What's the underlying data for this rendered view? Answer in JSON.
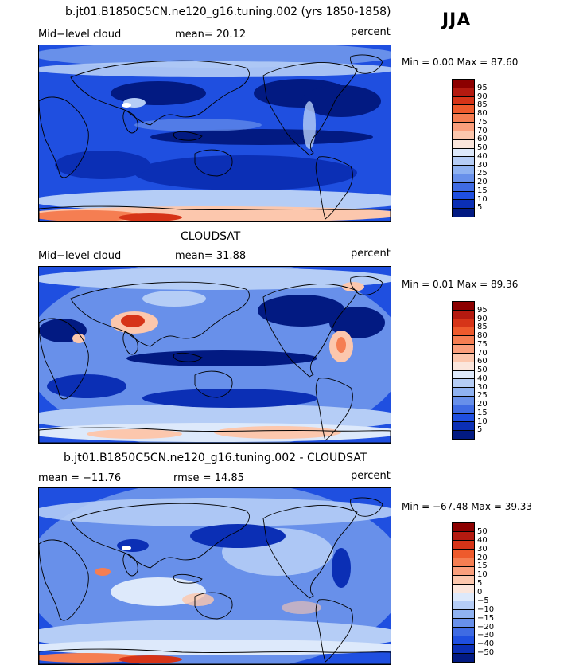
{
  "season": "JJA",
  "panels": [
    {
      "title": "b.jt01.B1850C5CN.ne120_g16.tuning.002 (yrs 1850-1858)",
      "left_label": "Mid−level cloud",
      "mid_label": "mean=  20.12",
      "right_label": "percent",
      "minmax": "Min =   0.00 Max =  87.60",
      "colorbar_labels": [
        "95",
        "90",
        "85",
        "80",
        "75",
        "70",
        "60",
        "50",
        "40",
        "30",
        "25",
        "20",
        "15",
        "10",
        "5"
      ]
    },
    {
      "title": "CLOUDSAT",
      "left_label": "Mid−level cloud",
      "mid_label": "mean=  31.88",
      "right_label": "percent",
      "minmax": "Min =   0.01 Max =  89.36",
      "colorbar_labels": [
        "95",
        "90",
        "85",
        "80",
        "75",
        "70",
        "60",
        "50",
        "40",
        "30",
        "25",
        "20",
        "15",
        "10",
        "5"
      ]
    },
    {
      "title": "b.jt01.B1850C5CN.ne120_g16.tuning.002 - CLOUDSAT",
      "left_label": "mean = −11.76",
      "mid_label": "rmse =  14.85",
      "right_label": "percent",
      "minmax": "Min = −67.48 Max =  39.33",
      "colorbar_labels": [
        "50",
        "40",
        "30",
        "20",
        "15",
        "10",
        "5",
        "0",
        "−5",
        "−10",
        "−15",
        "−20",
        "−30",
        "−40",
        "−50"
      ]
    }
  ],
  "colorbar_colors": [
    "#8c0000",
    "#b41a10",
    "#d63418",
    "#ee5a2c",
    "#f57e52",
    "#fa9f7c",
    "#fcc7ad",
    "#fbe6dc",
    "#dde9fb",
    "#b5cdf6",
    "#8fb2f1",
    "#6890ea",
    "#3f6be3",
    "#1f4fe0",
    "#0b2fb5",
    "#021a82"
  ],
  "map_colors": {
    "base": "#1f4fe0",
    "very_low": "#021a82",
    "low": "#0b2fb5",
    "mid": "#6890ea",
    "light": "#b5cdf6",
    "pale": "#dde9fb",
    "warm": "#fcc7ad",
    "hot": "#f57e52",
    "hotter": "#d63418",
    "coast": "#000000"
  }
}
